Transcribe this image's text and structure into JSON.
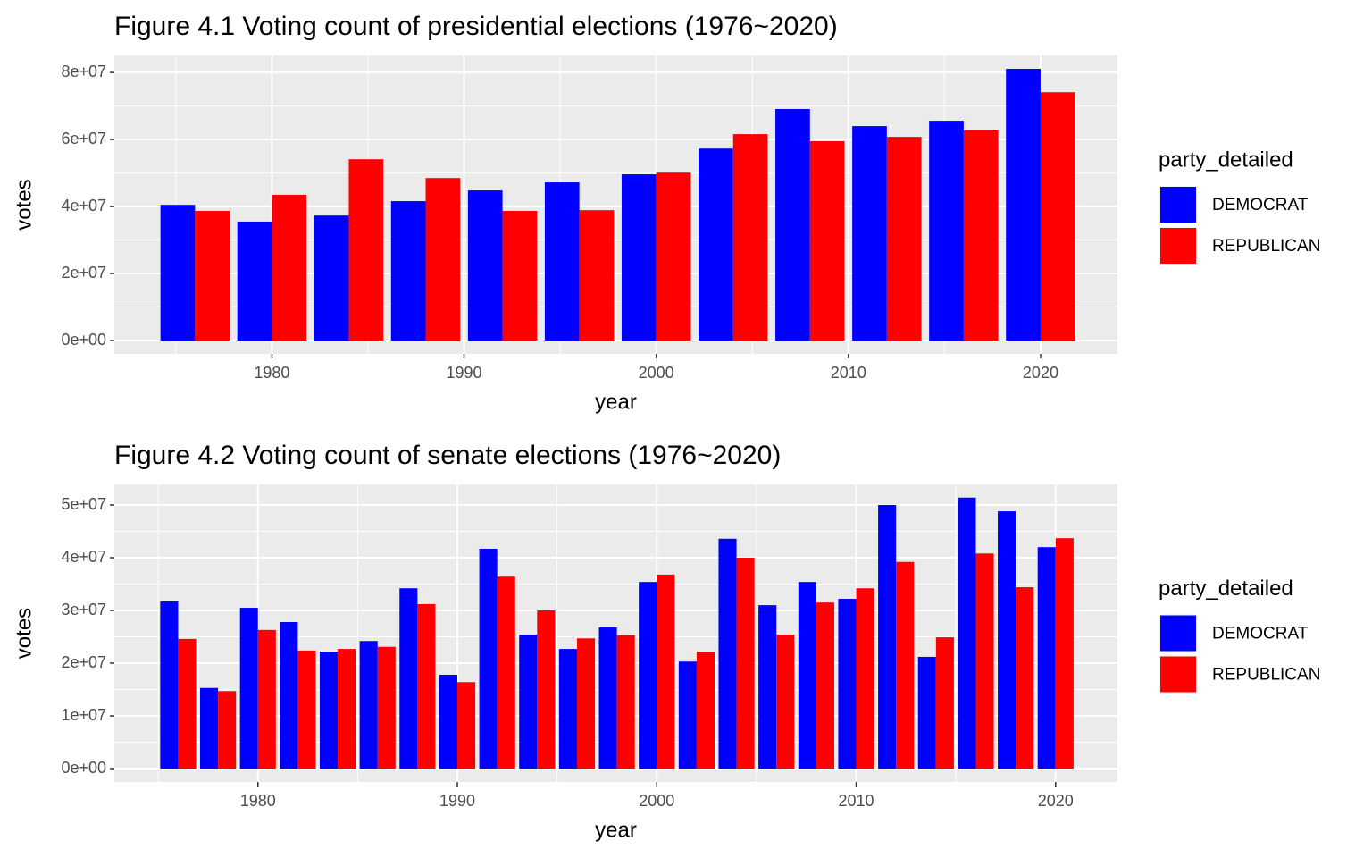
{
  "chart_data": [
    {
      "type": "bar",
      "title": "Figure 4.1 Voting count of presidential elections (1976~2020)",
      "x_label": "year",
      "y_label": "votes",
      "legend_title": "party_detailed",
      "x": [
        1976,
        1980,
        1984,
        1988,
        1992,
        1996,
        2000,
        2004,
        2008,
        2012,
        2016,
        2020
      ],
      "series": [
        {
          "name": "DEMOCRAT",
          "color": "#0000ff",
          "values": [
            40500000,
            35500000,
            37300000,
            41600000,
            44800000,
            47200000,
            49600000,
            57300000,
            69100000,
            64000000,
            65600000,
            81100000
          ]
        },
        {
          "name": "REPUBLICAN",
          "color": "#ff0000",
          "values": [
            38700000,
            43500000,
            54100000,
            48500000,
            38700000,
            38900000,
            50100000,
            61600000,
            59500000,
            60800000,
            62700000,
            74100000
          ]
        }
      ],
      "xlim": [
        1971.8,
        2024.0
      ],
      "xticks": [
        1980,
        1990,
        2000,
        2010,
        2020
      ],
      "ylim": [
        -4000000,
        85100000
      ],
      "yticks": [
        {
          "value": 0,
          "label": "0e+00"
        },
        {
          "value": 20000000,
          "label": "2e+07"
        },
        {
          "value": 40000000,
          "label": "4e+07"
        },
        {
          "value": 60000000,
          "label": "6e+07"
        },
        {
          "value": 80000000,
          "label": "8e+07"
        }
      ],
      "grid": true,
      "legend": "right"
    },
    {
      "type": "bar",
      "title": "Figure 4.2 Voting count of senate elections (1976~2020)",
      "x_label": "year",
      "y_label": "votes",
      "legend_title": "party_detailed",
      "x": [
        1976,
        1978,
        1980,
        1982,
        1984,
        1986,
        1988,
        1990,
        1992,
        1994,
        1996,
        1998,
        2000,
        2002,
        2004,
        2006,
        2008,
        2010,
        2012,
        2014,
        2016,
        2018,
        2020
      ],
      "series": [
        {
          "name": "DEMOCRAT",
          "color": "#0000ff",
          "values": [
            31700000,
            15300000,
            30500000,
            27800000,
            22200000,
            24200000,
            34200000,
            17800000,
            41700000,
            25400000,
            22700000,
            26800000,
            35400000,
            20300000,
            43600000,
            31000000,
            35400000,
            32200000,
            50000000,
            21200000,
            51400000,
            48800000,
            42000000
          ]
        },
        {
          "name": "REPUBLICAN",
          "color": "#ff0000",
          "values": [
            24600000,
            14700000,
            26300000,
            22400000,
            22700000,
            23100000,
            31200000,
            16400000,
            36400000,
            30000000,
            24700000,
            25300000,
            36800000,
            22200000,
            40000000,
            25400000,
            31500000,
            34200000,
            39200000,
            24900000,
            40800000,
            34400000,
            43700000
          ]
        }
      ],
      "xlim": [
        1972.8,
        2023.1
      ],
      "xticks": [
        1980,
        1990,
        2000,
        2010,
        2020
      ],
      "ylim": [
        -2540000,
        53900000
      ],
      "yticks": [
        {
          "value": 0,
          "label": "0e+00"
        },
        {
          "value": 10000000,
          "label": "1e+07"
        },
        {
          "value": 20000000,
          "label": "2e+07"
        },
        {
          "value": 30000000,
          "label": "3e+07"
        },
        {
          "value": 40000000,
          "label": "4e+07"
        },
        {
          "value": 50000000,
          "label": "5e+07"
        }
      ],
      "grid": true,
      "legend": "right"
    }
  ]
}
